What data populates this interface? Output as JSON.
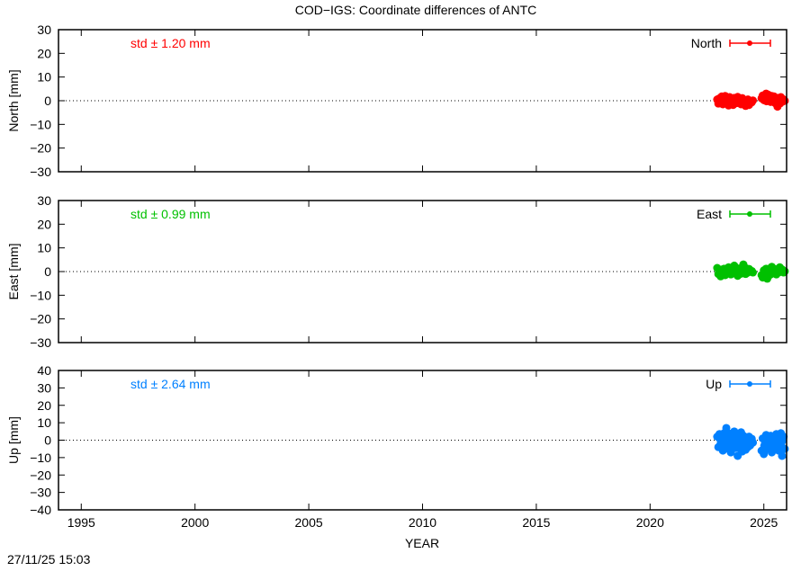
{
  "chart_data": {
    "type": "scatter",
    "title": "COD−IGS: Coordinate differences of ANTC",
    "xlabel": "YEAR",
    "xlim": [
      1994,
      2026
    ],
    "xticks": [
      1995,
      2000,
      2005,
      2010,
      2015,
      2020,
      2025
    ],
    "grid": false,
    "zero_line": "dotted",
    "legend_placement": "top-right",
    "x": [
      2022.95,
      2023.0,
      2023.05,
      2023.1,
      2023.15,
      2023.2,
      2023.25,
      2023.3,
      2023.35,
      2023.4,
      2023.45,
      2023.5,
      2023.55,
      2023.6,
      2023.65,
      2023.7,
      2023.75,
      2023.8,
      2023.85,
      2023.9,
      2023.95,
      2024.0,
      2024.05,
      2024.1,
      2024.15,
      2024.2,
      2024.25,
      2024.3,
      2024.35,
      2024.4,
      2024.9,
      2024.95,
      2025.0,
      2025.05,
      2025.1,
      2025.15,
      2025.2,
      2025.25,
      2025.3,
      2025.35,
      2025.4,
      2025.45,
      2025.5,
      2025.55,
      2025.6,
      2025.65,
      2025.7,
      2025.75,
      2025.8
    ],
    "panels": [
      {
        "ylabel": "North [mm]",
        "ylim": [
          -30,
          30
        ],
        "yticks": [
          -30,
          -20,
          -10,
          0,
          10,
          20,
          30
        ],
        "legend": "North",
        "std_label": "std ± 1.20 mm",
        "color": "#ff0000",
        "values": [
          0.5,
          -1.2,
          1.0,
          -0.5,
          1.8,
          -1.5,
          0.3,
          2.0,
          -1.0,
          0.8,
          -2.0,
          1.5,
          -0.3,
          0.9,
          -1.8,
          1.2,
          0.0,
          -1.0,
          1.6,
          -0.6,
          0.4,
          -1.5,
          1.1,
          -0.8,
          0.2,
          -2.2,
          -1.0,
          0.5,
          -1.8,
          -0.5,
          1.0,
          2.2,
          0.3,
          1.5,
          3.0,
          0.8,
          2.5,
          1.0,
          -0.5,
          2.0,
          0.5,
          1.8,
          -1.0,
          0.8,
          -2.5,
          1.2,
          0.0,
          1.5,
          0.6
        ]
      },
      {
        "ylabel": "East [mm]",
        "ylim": [
          -30,
          30
        ],
        "yticks": [
          -30,
          -20,
          -10,
          0,
          10,
          20,
          30
        ],
        "legend": "East",
        "std_label": "std ± 0.99 mm",
        "color": "#00c000",
        "values": [
          1.5,
          -1.0,
          0.5,
          -2.0,
          0.8,
          -0.5,
          1.2,
          -1.5,
          0.3,
          -0.8,
          1.8,
          0.0,
          -1.2,
          1.0,
          -0.3,
          2.5,
          -0.6,
          0.7,
          -1.8,
          1.3,
          0.2,
          -0.9,
          1.6,
          3.0,
          0.4,
          -1.0,
          0.8,
          -0.4,
          1.1,
          0.0,
          -1.5,
          -2.5,
          0.5,
          -1.0,
          1.2,
          -3.0,
          0.8,
          -0.5,
          1.5,
          2.0,
          -0.8,
          0.3,
          1.0,
          -1.2,
          0.6,
          -0.3,
          1.8,
          0.0,
          0.9
        ]
      },
      {
        "ylabel": "Up [mm]",
        "ylim": [
          -40,
          40
        ],
        "yticks": [
          -40,
          -30,
          -20,
          -10,
          0,
          10,
          20,
          30,
          40
        ],
        "legend": "Up",
        "std_label": "std ± 2.64 mm",
        "color": "#0080ff",
        "values": [
          2.0,
          -4.0,
          3.5,
          -2.0,
          1.0,
          -6.0,
          4.0,
          -3.0,
          7.0,
          -1.0,
          -5.0,
          3.0,
          -7.0,
          2.0,
          -2.5,
          5.0,
          -4.5,
          1.5,
          -9.0,
          0.5,
          -3.5,
          4.5,
          -6.5,
          2.5,
          -1.5,
          -5.5,
          0.0,
          -4.0,
          2.0,
          -3.0,
          -6.0,
          1.0,
          -8.0,
          -2.0,
          3.0,
          -5.0,
          0.5,
          -3.5,
          2.5,
          -7.0,
          -1.0,
          1.5,
          -4.5,
          3.5,
          -2.5,
          -6.0,
          0.0,
          4.0,
          -9.0
        ]
      }
    ]
  },
  "timestamp": "27/11/25 15:03"
}
